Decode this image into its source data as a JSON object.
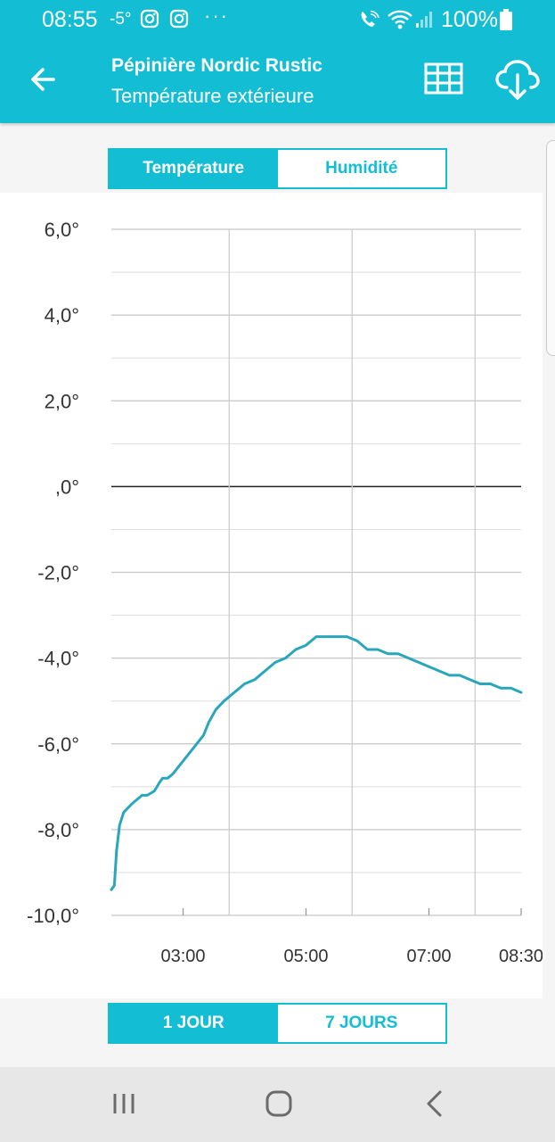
{
  "status_bar": {
    "time": "08:55",
    "temperature": "-5°",
    "more": "···",
    "battery": "100%"
  },
  "app_bar": {
    "title": "Pépinière Nordic Rustic",
    "subtitle": "Température extérieure"
  },
  "metric_toggle": {
    "options": [
      "Température",
      "Humidité"
    ],
    "selected": "Température"
  },
  "period_toggle": {
    "options": [
      "1 JOUR",
      "7 JOURS"
    ],
    "selected": "1 JOUR"
  },
  "colors": {
    "accent": "#13bdd4",
    "line": "#2aa6bc"
  },
  "chart_data": {
    "type": "line",
    "ylim": [
      -10,
      6
    ],
    "y_ticks": [
      {
        "value": 6,
        "label": "6,0°"
      },
      {
        "value": 4,
        "label": "4,0°"
      },
      {
        "value": 2,
        "label": "2,0°"
      },
      {
        "value": 0,
        "label": ",0°"
      },
      {
        "value": -2,
        "label": "-2,0°"
      },
      {
        "value": -4,
        "label": "-4,0°"
      },
      {
        "value": -6,
        "label": "-6,0°"
      },
      {
        "value": -8,
        "label": "-8,0°"
      },
      {
        "value": -10,
        "label": "-10,0°"
      }
    ],
    "xlim": [
      "01:50",
      "08:30"
    ],
    "x_ticks": [
      "03:00",
      "05:00",
      "07:00",
      "08:30"
    ],
    "grid": true,
    "series": [
      {
        "x": [
          "01:50",
          "01:53",
          "01:55",
          "01:58",
          "02:02",
          "02:10",
          "02:20",
          "02:25",
          "02:32",
          "02:37",
          "02:40",
          "02:45",
          "02:50",
          "03:00",
          "03:10",
          "03:20",
          "03:25",
          "03:32",
          "03:40",
          "03:50",
          "04:00",
          "04:10",
          "04:20",
          "04:30",
          "04:40",
          "04:50",
          "05:00",
          "05:10",
          "05:20",
          "05:30",
          "05:40",
          "05:50",
          "06:00",
          "06:10",
          "06:20",
          "06:30",
          "06:40",
          "06:50",
          "07:00",
          "07:10",
          "07:20",
          "07:30",
          "07:40",
          "07:50",
          "08:00",
          "08:10",
          "08:20",
          "08:30"
        ],
        "y": [
          -9.4,
          -9.3,
          -8.5,
          -7.9,
          -7.6,
          -7.4,
          -7.2,
          -7.2,
          -7.1,
          -6.9,
          -6.8,
          -6.8,
          -6.7,
          -6.4,
          -6.1,
          -5.8,
          -5.5,
          -5.2,
          -5.0,
          -4.8,
          -4.6,
          -4.5,
          -4.3,
          -4.1,
          -4.0,
          -3.8,
          -3.7,
          -3.5,
          -3.5,
          -3.5,
          -3.5,
          -3.6,
          -3.8,
          -3.8,
          -3.9,
          -3.9,
          -4.0,
          -4.1,
          -4.2,
          -4.3,
          -4.4,
          -4.4,
          -4.5,
          -4.6,
          -4.6,
          -4.7,
          -4.7,
          -4.8
        ]
      }
    ]
  }
}
